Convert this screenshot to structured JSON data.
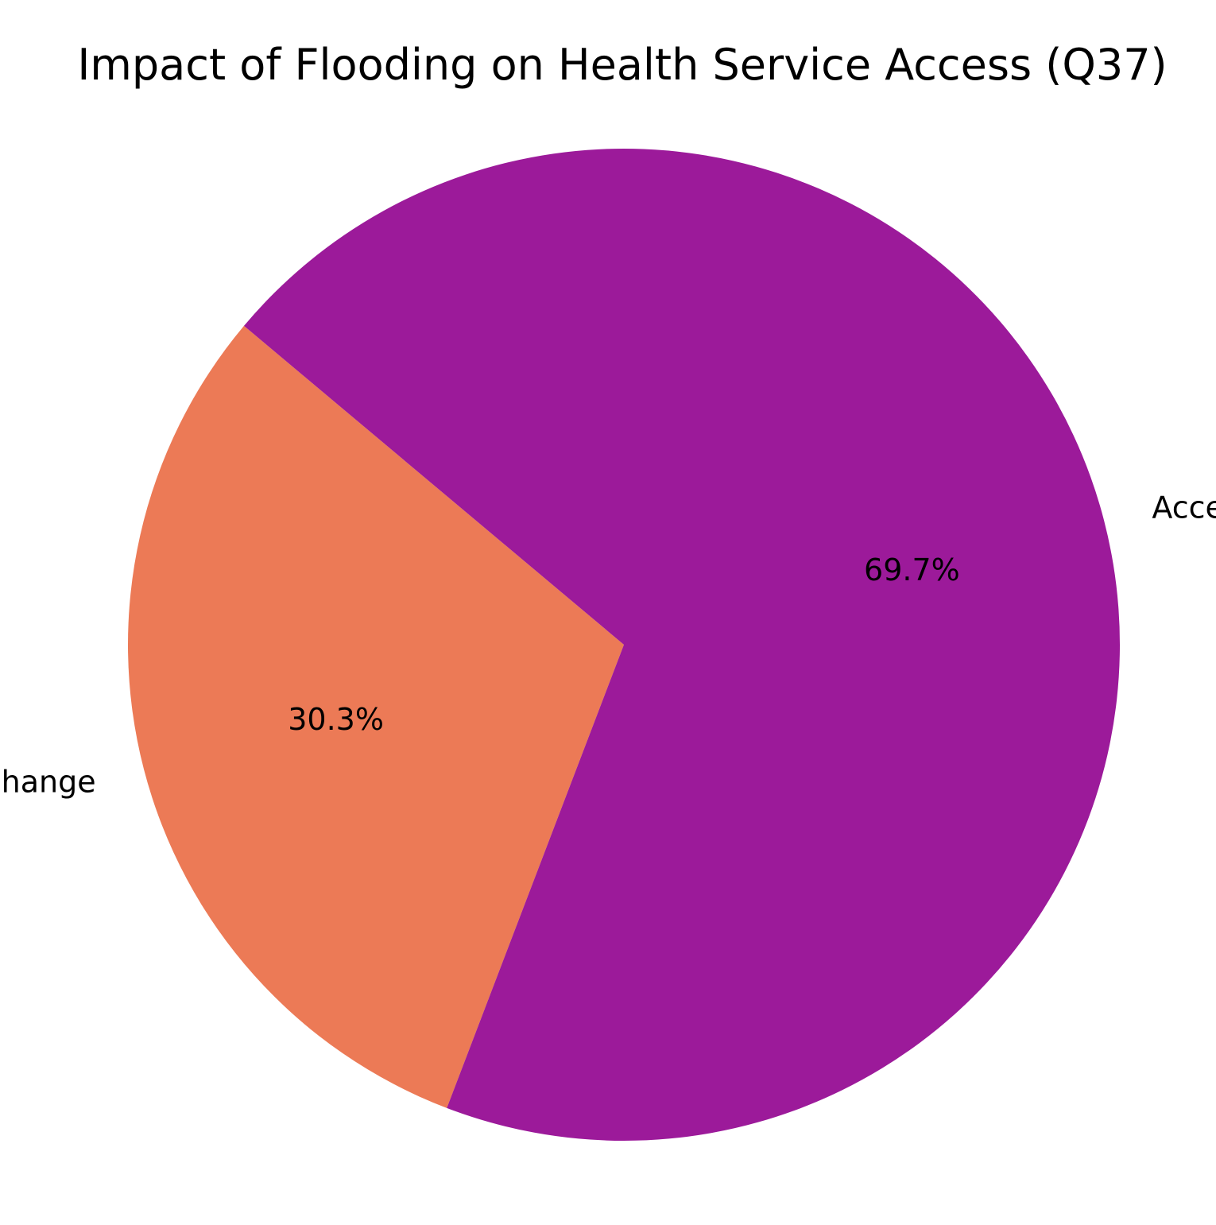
{
  "chart_data": {
    "type": "pie",
    "title": "Impact of Flooding on Health Service Access (Q37)",
    "slices": [
      {
        "label": "No Change",
        "value": 30.3,
        "pct_label": "30.3%",
        "color": "#EC7A56"
      },
      {
        "label": "Access Changed",
        "value": 69.7,
        "pct_label": "69.7%",
        "color": "#9C1A9A"
      }
    ]
  }
}
